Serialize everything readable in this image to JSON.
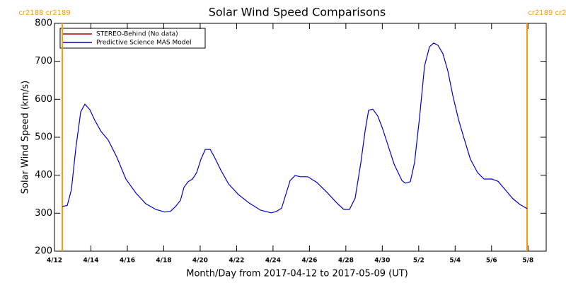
{
  "chart_data": {
    "type": "line",
    "title": "Solar Wind Speed Comparisons",
    "x_label": "Month/Day from 2017-04-12 to 2017-05-09 (UT)",
    "y_label": "Solar Wind Speed (km/s)",
    "xlim": [
      0,
      27
    ],
    "xticks": [
      {
        "value": 0,
        "label": "4/12"
      },
      {
        "value": 2,
        "label": "4/14"
      },
      {
        "value": 4,
        "label": "4/16"
      },
      {
        "value": 6,
        "label": "4/18"
      },
      {
        "value": 8,
        "label": "4/20"
      },
      {
        "value": 10,
        "label": "4/22"
      },
      {
        "value": 12,
        "label": "4/24"
      },
      {
        "value": 14,
        "label": "4/26"
      },
      {
        "value": 16,
        "label": "4/28"
      },
      {
        "value": 18,
        "label": "4/30"
      },
      {
        "value": 20,
        "label": "5/2"
      },
      {
        "value": 22,
        "label": "5/4"
      },
      {
        "value": 24,
        "label": "5/6"
      },
      {
        "value": 26,
        "label": "5/8"
      }
    ],
    "ylim": [
      200,
      800
    ],
    "yticks": [
      200,
      300,
      400,
      500,
      600,
      700,
      800
    ],
    "markers": [
      {
        "x": 0.43,
        "label": "cr2188 cr2189",
        "color": "#ff9900"
      },
      {
        "x": 25.95,
        "label": "cr2189 cr2190",
        "color": "#ff9900"
      }
    ],
    "x": [
      0.43,
      0.7,
      0.93,
      1.17,
      1.44,
      1.67,
      1.94,
      2.21,
      2.56,
      2.95,
      3.42,
      3.92,
      4.47,
      5.01,
      5.56,
      6.06,
      6.37,
      6.64,
      6.92,
      7.11,
      7.34,
      7.58,
      7.81,
      8.04,
      8.28,
      8.55,
      8.78,
      9.13,
      9.56,
      10.1,
      10.68,
      11.31,
      11.89,
      12.16,
      12.47,
      12.7,
      12.94,
      13.21,
      13.52,
      13.91,
      14.41,
      14.96,
      15.5,
      15.89,
      16.2,
      16.51,
      16.82,
      17.06,
      17.25,
      17.48,
      17.75,
      17.99,
      18.26,
      18.65,
      19.08,
      19.27,
      19.54,
      19.77,
      20.05,
      20.32,
      20.59,
      20.82,
      21.06,
      21.33,
      21.6,
      21.87,
      22.18,
      22.46,
      22.84,
      23.23,
      23.58,
      24.01,
      24.36,
      24.75,
      25.17,
      25.56,
      25.95
    ],
    "series": [
      {
        "name": "STEREO-Behind (No data)",
        "color": "#aa0000",
        "values": [
          null,
          null,
          null,
          null,
          null,
          null,
          null,
          null,
          null,
          null,
          null,
          null,
          null,
          null,
          null,
          null,
          null,
          null,
          null,
          null,
          null,
          null,
          null,
          null,
          null,
          null,
          null,
          null,
          null,
          null,
          null,
          null,
          null,
          null,
          null,
          null,
          null,
          null,
          null,
          null,
          null,
          null,
          null,
          null,
          null,
          null,
          null,
          null,
          null,
          null,
          null,
          null,
          null,
          null,
          null,
          null,
          null,
          null,
          null,
          null,
          null,
          null,
          null,
          null,
          null,
          null,
          null,
          null,
          null,
          null,
          null,
          null,
          null,
          null,
          null,
          null,
          null
        ]
      },
      {
        "name": "Predictive Science MAS Model",
        "color": "#0000cc",
        "values": [
          318,
          320,
          362,
          470,
          567,
          587,
          573,
          545,
          515,
          493,
          448,
          390,
          353,
          325,
          310,
          303,
          305,
          317,
          334,
          368,
          383,
          390,
          407,
          442,
          468,
          468,
          448,
          414,
          377,
          349,
          327,
          308,
          301,
          304,
          313,
          349,
          386,
          399,
          396,
          396,
          381,
          355,
          327,
          310,
          310,
          340,
          433,
          517,
          571,
          574,
          556,
          526,
          487,
          429,
          386,
          379,
          383,
          433,
          554,
          688,
          738,
          748,
          742,
          720,
          675,
          610,
          548,
          502,
          442,
          407,
          390,
          390,
          384,
          362,
          338,
          323,
          312
        ]
      }
    ]
  }
}
